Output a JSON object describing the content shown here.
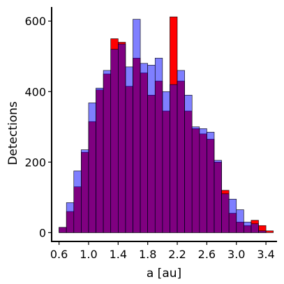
{
  "chart_data": {
    "type": "bar",
    "subtype": "overlapping histogram",
    "xlabel": "a [au]",
    "ylabel": "Detections",
    "x_ticks": [
      "0.6",
      "1.0",
      "1.4",
      "1.8",
      "2.2",
      "2.6",
      "3.0",
      "3.4"
    ],
    "y_ticks": [
      "0",
      "200",
      "400",
      "600"
    ],
    "xlim": [
      0.5,
      3.55
    ],
    "ylim": [
      -25,
      640
    ],
    "bin_width": 0.1,
    "bin_starts": [
      0.6,
      0.7,
      0.8,
      0.9,
      1.0,
      1.1,
      1.2,
      1.3,
      1.4,
      1.5,
      1.6,
      1.7,
      1.8,
      1.9,
      2.0,
      2.1,
      2.2,
      2.3,
      2.4,
      2.5,
      2.6,
      2.7,
      2.8,
      2.9,
      3.0,
      3.1,
      3.2,
      3.3,
      3.4
    ],
    "series": [
      {
        "color": "#ff0000",
        "values": [
          15,
          60,
          130,
          228,
          315,
          405,
          450,
          550,
          540,
          415,
          495,
          453,
          390,
          430,
          345,
          612,
          430,
          345,
          295,
          280,
          265,
          200,
          120,
          55,
          30,
          20,
          35,
          20,
          5
        ]
      },
      {
        "color": "#0000ff",
        "opacity": 0.5,
        "values": [
          15,
          85,
          175,
          235,
          368,
          410,
          460,
          520,
          535,
          470,
          605,
          480,
          475,
          495,
          400,
          420,
          460,
          390,
          300,
          295,
          285,
          205,
          110,
          95,
          65,
          30,
          25,
          5,
          0
        ]
      }
    ],
    "grid": false,
    "legend": "none"
  }
}
